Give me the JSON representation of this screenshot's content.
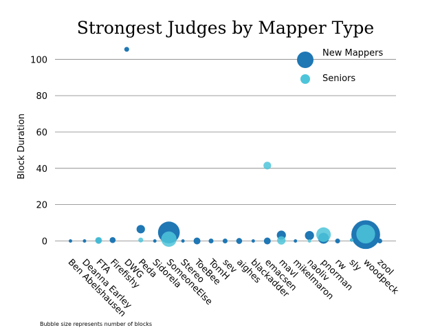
{
  "chart_data": {
    "type": "scatter",
    "title": "Strongest Judges by Mapper Type",
    "xlabel": "",
    "ylabel": "Block Duration",
    "ylim": [
      -3,
      110
    ],
    "yticks": [
      0,
      20,
      40,
      60,
      80,
      100
    ],
    "grid": "horizontal",
    "legend_position": "top-right",
    "categories": [
      "Ben Abelshausen",
      "Deanna Earley",
      "FTA",
      "Firefishy",
      "DWG",
      "Peda",
      "Sidorela",
      "SomeoneElse",
      "Stereo",
      "ToeBee",
      "TomH",
      "sev",
      "aighes",
      "blackadder",
      "emacsen",
      "mavl",
      "mikelmaron",
      "naoliv",
      "pnorman",
      "rw",
      "sly",
      "woodpeck",
      "zool"
    ],
    "series": [
      {
        "name": "New Mappers",
        "color": "#1f77b4",
        "points": [
          {
            "x": "Ben Abelshausen",
            "y": 0,
            "blocks": 1
          },
          {
            "x": "Deanna Earley",
            "y": 0,
            "blocks": 1
          },
          {
            "x": "FTA",
            "y": 0.3,
            "blocks": 3
          },
          {
            "x": "Firefishy",
            "y": 0.5,
            "blocks": 3
          },
          {
            "x": "DWG",
            "y": 105.5,
            "blocks": 2
          },
          {
            "x": "Peda",
            "y": 6.5,
            "blocks": 6
          },
          {
            "x": "Sidorela",
            "y": 0,
            "blocks": 1
          },
          {
            "x": "SomeoneElse",
            "y": 4.7,
            "blocks": 40
          },
          {
            "x": "Stereo",
            "y": 0,
            "blocks": 1
          },
          {
            "x": "ToeBee",
            "y": 0,
            "blocks": 4
          },
          {
            "x": "TomH",
            "y": 0,
            "blocks": 2
          },
          {
            "x": "sev",
            "y": 0,
            "blocks": 2
          },
          {
            "x": "aighes",
            "y": 0,
            "blocks": 3
          },
          {
            "x": "blackadder",
            "y": 0,
            "blocks": 1
          },
          {
            "x": "emacsen",
            "y": 0,
            "blocks": 4
          },
          {
            "x": "mavl",
            "y": 3.2,
            "blocks": 7
          },
          {
            "x": "mikelmaron",
            "y": 0,
            "blocks": 1
          },
          {
            "x": "naoliv",
            "y": 3,
            "blocks": 7
          },
          {
            "x": "pnorman",
            "y": 1.5,
            "blocks": 10
          },
          {
            "x": "rw",
            "y": 0,
            "blocks": 2
          },
          {
            "x": "sly",
            "y": 0.5,
            "blocks": 1
          },
          {
            "x": "woodpeck",
            "y": 3.5,
            "blocks": 70
          },
          {
            "x": "zool",
            "y": 0,
            "blocks": 2
          }
        ]
      },
      {
        "name": "Seniors",
        "color": "#4dc4d9",
        "points": [
          {
            "x": "FTA",
            "y": 0.3,
            "blocks": 4
          },
          {
            "x": "Peda",
            "y": 0.5,
            "blocks": 2
          },
          {
            "x": "SomeoneElse",
            "y": 1,
            "blocks": 20
          },
          {
            "x": "emacsen",
            "y": 41.5,
            "blocks": 5
          },
          {
            "x": "mavl",
            "y": 0.3,
            "blocks": 6
          },
          {
            "x": "naoliv",
            "y": 0,
            "blocks": 1
          },
          {
            "x": "pnorman",
            "y": 3.5,
            "blocks": 18
          },
          {
            "x": "sly",
            "y": 0.5,
            "blocks": 1
          },
          {
            "x": "woodpeck",
            "y": 3.8,
            "blocks": 30
          }
        ]
      }
    ],
    "note": "Bubble size represents number of blocks"
  }
}
